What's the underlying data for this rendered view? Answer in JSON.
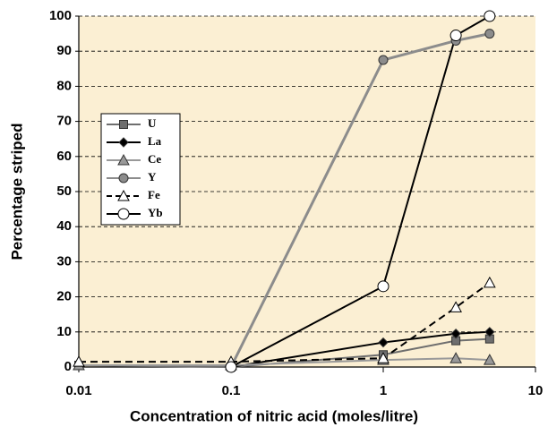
{
  "chart_data": {
    "type": "line",
    "xlabel": "Concentration of nitric acid (moles/litre)",
    "ylabel": "Percentage striped",
    "x": [
      0.01,
      0.1,
      1,
      3,
      5
    ],
    "xscale": "log",
    "xlim": [
      0.01,
      10
    ],
    "xticks": [
      0.01,
      0.1,
      1,
      10
    ],
    "ylim": [
      0,
      100
    ],
    "yticks": [
      0,
      10,
      20,
      30,
      40,
      50,
      60,
      70,
      80,
      90,
      100
    ],
    "grid": "y",
    "legend": "upper left",
    "series": [
      {
        "name": "U",
        "color": "#6e6e6e",
        "marker": "square",
        "values": [
          0.5,
          0,
          3.5,
          7.5,
          8
        ]
      },
      {
        "name": "La",
        "color": "#000000",
        "marker": "diamond",
        "values": [
          null,
          0,
          7,
          9.5,
          10
        ]
      },
      {
        "name": "Ce",
        "color": "#999999",
        "marker": "triangle",
        "values": [
          0.5,
          0.5,
          2,
          2.5,
          2
        ]
      },
      {
        "name": "Y",
        "color": "#8c8c8c",
        "marker": "circle",
        "values": [
          null,
          0,
          87.5,
          93,
          95
        ]
      },
      {
        "name": "Fe",
        "color": "#000000",
        "marker": "open-triangle",
        "dashed": true,
        "values": [
          1.5,
          1.5,
          2.5,
          17,
          24
        ]
      },
      {
        "name": "Yb",
        "color": "#000000",
        "marker": "open-circle",
        "values": [
          null,
          0,
          23,
          94.5,
          100
        ]
      }
    ]
  }
}
